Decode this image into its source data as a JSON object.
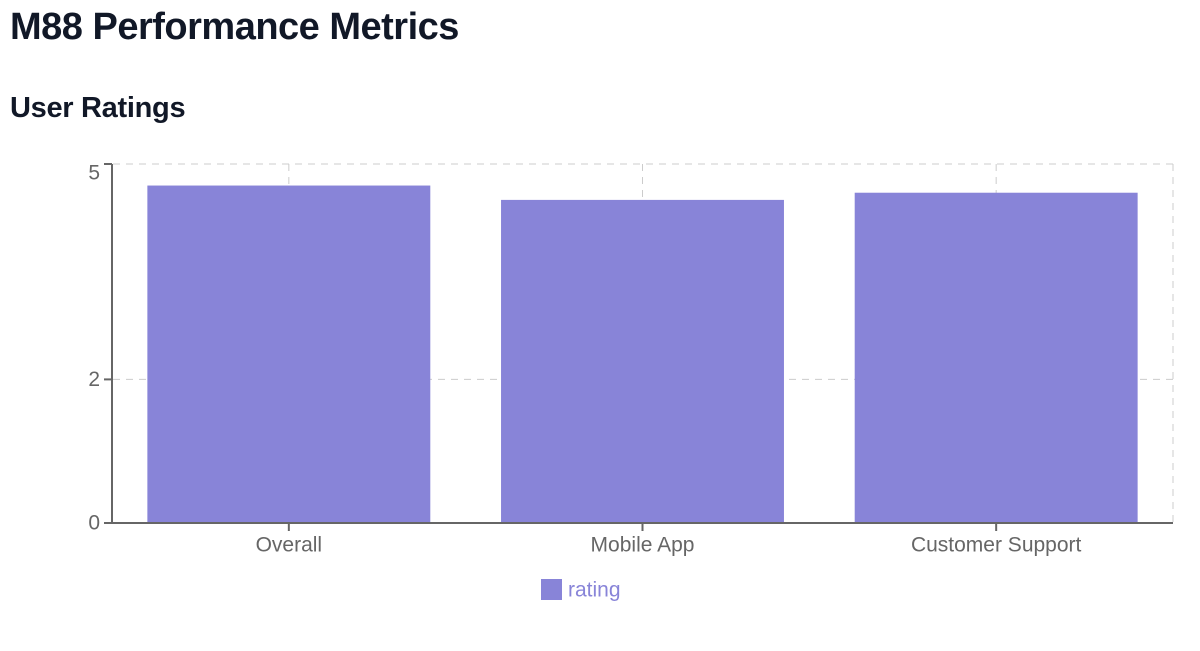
{
  "header": {
    "title": "M88 Performance Metrics"
  },
  "chart_data": {
    "type": "bar",
    "title": "User Ratings",
    "categories": [
      "Overall",
      "Mobile App",
      "Customer Support"
    ],
    "series": [
      {
        "name": "rating",
        "values": [
          4.7,
          4.5,
          4.6
        ]
      }
    ],
    "xlabel": "",
    "ylabel": "",
    "ylim": [
      0,
      5
    ],
    "yticks": [
      0,
      2,
      5
    ],
    "grid": true,
    "legend": {
      "label": "rating",
      "position": "bottom",
      "icon": "square-swatch-icon"
    },
    "colors": {
      "bar": "#8884d8",
      "axis": "#666666",
      "tick_text": "#666666",
      "grid": "#cccccc",
      "legend_text": "#8884d8",
      "title_text": "#111827"
    }
  }
}
